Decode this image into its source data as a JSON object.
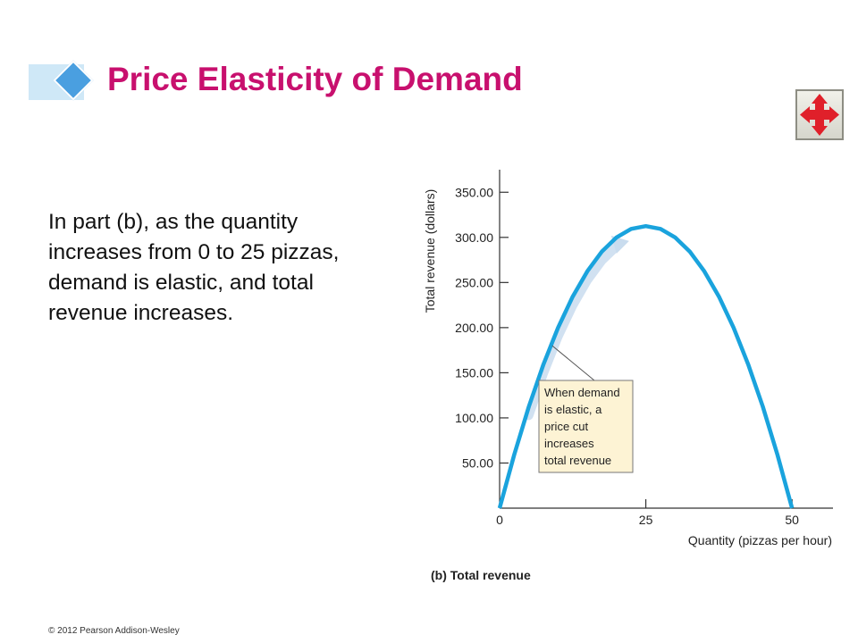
{
  "slide": {
    "title": "Price Elasticity of Demand",
    "body": "In part (b), as the quantity increases from 0 to 25 pizzas, demand is elastic, and total revenue increases.",
    "footer": "© 2012 Pearson Addison-Wesley",
    "nav_icon": "four-way-arrows-icon",
    "colors": {
      "title": "#c8106e",
      "accent": "#4a9fe0",
      "nav_arrows": "#e0202a"
    }
  },
  "chart_data": {
    "type": "line",
    "caption": "(b) Total revenue",
    "xlabel": "Quantity (pizzas per hour)",
    "ylabel": "Total revenue (dollars)",
    "xlim": [
      0,
      57
    ],
    "ylim": [
      0,
      375
    ],
    "x_ticks": [
      0,
      25,
      50
    ],
    "x_tick_labels": [
      "0",
      "25",
      "50"
    ],
    "y_ticks": [
      50,
      100,
      150,
      200,
      250,
      300,
      350
    ],
    "y_tick_labels": [
      "50.00",
      "100.00",
      "150.00",
      "200.00",
      "250.00",
      "300.00",
      "350.00"
    ],
    "grid": false,
    "series": [
      {
        "color": "#1aa3dd",
        "x": [
          0,
          2.5,
          5,
          7.5,
          10,
          12.5,
          15,
          17.5,
          20,
          22.5,
          25,
          27.5,
          30,
          32.5,
          35,
          37.5,
          40,
          42.5,
          45,
          47.5,
          50
        ],
        "y": [
          0,
          59.4,
          112.5,
          159.4,
          200,
          234.4,
          262.5,
          284.4,
          300,
          309.4,
          312.5,
          309.4,
          300,
          284.4,
          262.5,
          234.4,
          200,
          159.4,
          112.5,
          59.4,
          0
        ]
      }
    ],
    "annotation": {
      "text_lines": [
        "When demand",
        "is elastic, a",
        "price cut",
        "increases",
        "total revenue"
      ],
      "points_to": [
        9,
        180
      ],
      "arrow_from_x": 5,
      "arrow_to_x": 21
    }
  }
}
